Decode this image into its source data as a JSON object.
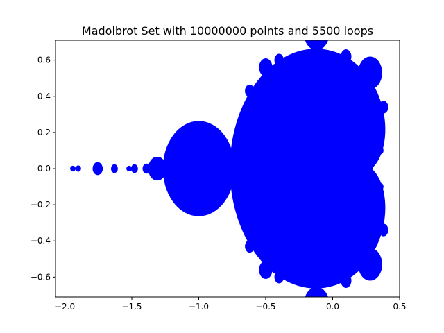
{
  "chart_data": {
    "type": "scatter",
    "title": "Madolbrot Set with 10000000 points and 5500 loops",
    "xlabel": "",
    "ylabel": "",
    "xlim": [
      -2.07,
      0.5
    ],
    "ylim": [
      -0.71,
      0.71
    ],
    "x_ticks": [
      -2.0,
      -1.5,
      -1.0,
      -0.5,
      0.0,
      0.5
    ],
    "x_tick_labels": [
      "−2.0",
      "−1.5",
      "−1.0",
      "−0.5",
      "0.0",
      "0.5"
    ],
    "y_ticks": [
      -0.6,
      -0.4,
      -0.2,
      0.0,
      0.2,
      0.4,
      0.6
    ],
    "y_tick_labels": [
      "−0.6",
      "−0.4",
      "−0.2",
      "0.0",
      "0.2",
      "0.4",
      "0.6"
    ],
    "grid": false,
    "marker_color": "#0000ff",
    "series": [
      {
        "description": "points inside the Mandelbrot set (filled region)",
        "cardioid": {
          "center": [
            -0.25,
            0.0
          ]
        },
        "bulb": {
          "center": [
            -1.0,
            0.0
          ],
          "radius": 0.25
        },
        "satellites": [
          {
            "x": -1.31,
            "y": 0.0,
            "r": 0.06
          },
          {
            "x": -1.39,
            "y": 0.0,
            "r": 0.022
          },
          {
            "x": -1.48,
            "y": 0.0,
            "r": 0.018
          },
          {
            "x": -1.52,
            "y": 0.0,
            "r": 0.01
          },
          {
            "x": -1.63,
            "y": 0.0,
            "r": 0.018
          },
          {
            "x": -1.755,
            "y": 0.0,
            "r": 0.03
          },
          {
            "x": -1.9,
            "y": 0.0,
            "r": 0.012
          },
          {
            "x": -1.94,
            "y": 0.0,
            "r": 0.01
          }
        ]
      }
    ]
  }
}
